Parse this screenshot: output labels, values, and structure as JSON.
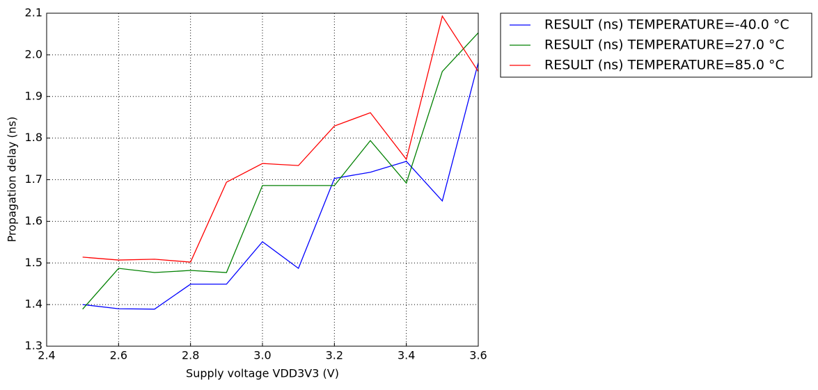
{
  "chart_data": {
    "type": "line",
    "x_label": "Supply voltage VDD3V3 (V)",
    "y_label": "Propagation delay (ns)",
    "x": [
      2.5,
      2.6,
      2.7,
      2.8,
      2.9,
      3.0,
      3.1,
      3.2,
      3.3,
      3.4,
      3.5,
      3.6
    ],
    "series": [
      {
        "name": "RESULT (ns) TEMPERATURE=-40.0 °C",
        "color": "#0000ff",
        "values": [
          1.4,
          1.39,
          1.389,
          1.449,
          1.449,
          1.551,
          1.487,
          1.703,
          1.718,
          1.744,
          1.649,
          1.981
        ]
      },
      {
        "name": "RESULT (ns) TEMPERATURE=27.0 °C",
        "color": "#008000",
        "values": [
          1.389,
          1.487,
          1.477,
          1.482,
          1.477,
          1.686,
          1.686,
          1.686,
          1.794,
          1.692,
          1.96,
          2.053
        ]
      },
      {
        "name": "RESULT (ns) TEMPERATURE=85.0 °C",
        "color": "#ff0000",
        "values": [
          1.514,
          1.507,
          1.509,
          1.502,
          1.694,
          1.739,
          1.734,
          1.829,
          1.861,
          1.749,
          2.093,
          1.96
        ]
      }
    ],
    "xlim": [
      2.4,
      3.6
    ],
    "xticks": [
      2.4,
      2.6,
      2.8,
      {
        "value": 3.0,
        "label": "3.0"
      },
      3.2,
      3.4,
      3.6
    ],
    "ylim": [
      1.3,
      2.1
    ],
    "yticks": [
      1.3,
      1.4,
      1.5,
      1.6,
      1.7,
      1.8,
      1.9,
      {
        "value": 2.0,
        "label": "2.0"
      },
      2.1
    ],
    "grid": true,
    "legend": "outside-right"
  }
}
